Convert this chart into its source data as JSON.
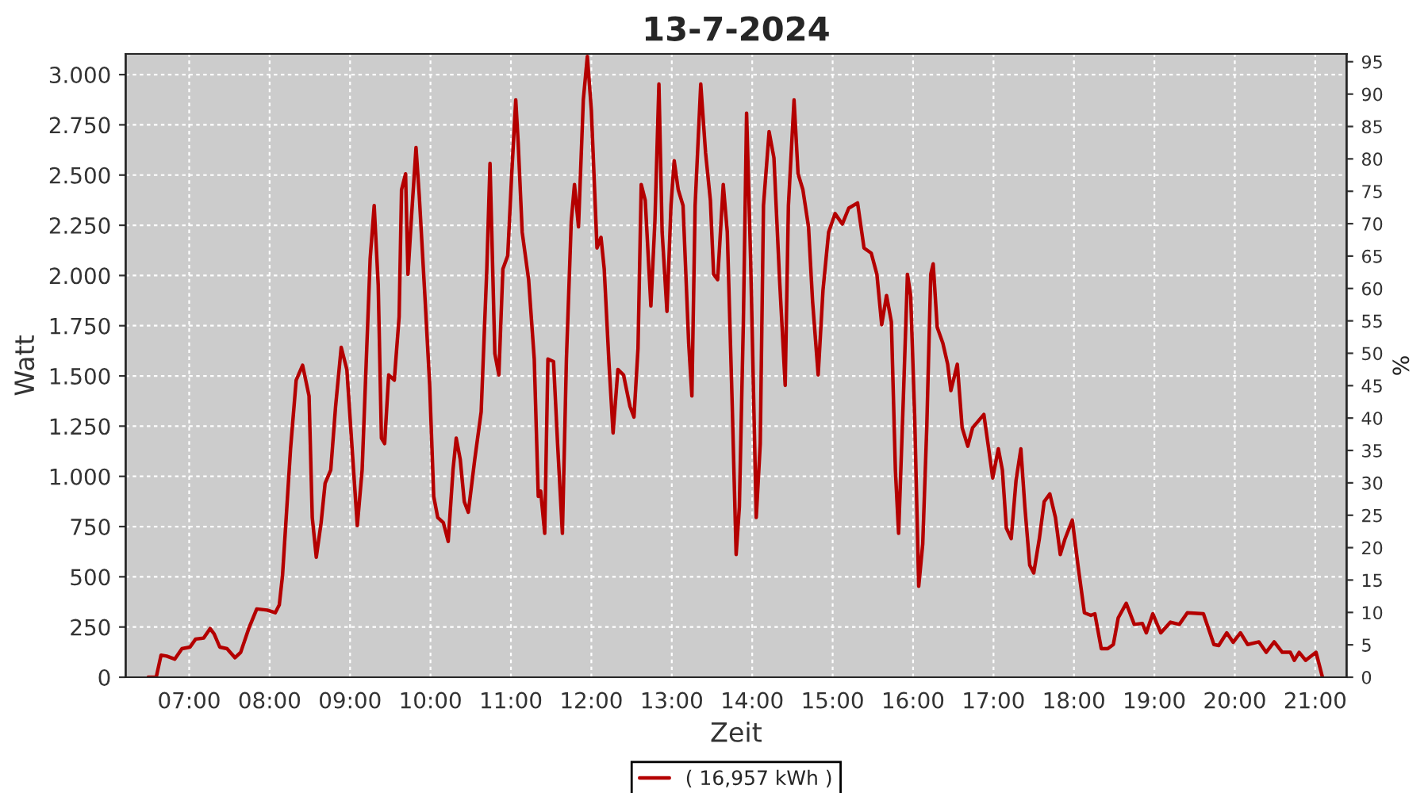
{
  "chart_data": {
    "type": "line",
    "title": "13-7-2024",
    "xlabel": "Zeit",
    "ylabel": "Watt",
    "y2label": "%",
    "xlim": [
      6.21,
      21.39
    ],
    "xticks": [
      {
        "value": 7,
        "label": "07:00"
      },
      {
        "value": 8,
        "label": "08:00"
      },
      {
        "value": 9,
        "label": "09:00"
      },
      {
        "value": 10,
        "label": "10:00"
      },
      {
        "value": 11,
        "label": "11:00"
      },
      {
        "value": 12,
        "label": "12:00"
      },
      {
        "value": 13,
        "label": "13:00"
      },
      {
        "value": 14,
        "label": "14:00"
      },
      {
        "value": 15,
        "label": "15:00"
      },
      {
        "value": 16,
        "label": "16:00"
      },
      {
        "value": 17,
        "label": "17:00"
      },
      {
        "value": 18,
        "label": "18:00"
      },
      {
        "value": 19,
        "label": "19:00"
      },
      {
        "value": 20,
        "label": "20:00"
      },
      {
        "value": 21,
        "label": "21:00"
      }
    ],
    "ylim": [
      0,
      3103
    ],
    "yticks": [
      0,
      250,
      500,
      750,
      {
        "value": 1000,
        "label": "1.000"
      },
      {
        "value": 1250,
        "label": "1.250"
      },
      {
        "value": 1500,
        "label": "1.500"
      },
      {
        "value": 1750,
        "label": "1.750"
      },
      {
        "value": 2000,
        "label": "2.000"
      },
      {
        "value": 2250,
        "label": "2.250"
      },
      {
        "value": 2500,
        "label": "2.500"
      },
      {
        "value": 2750,
        "label": "2.750"
      },
      {
        "value": 3000,
        "label": "3.000"
      }
    ],
    "y2lim": [
      0,
      96.2
    ],
    "y2ticks": [
      0,
      5,
      10,
      15,
      20,
      25,
      30,
      35,
      40,
      45,
      50,
      55,
      60,
      65,
      70,
      75,
      80,
      85,
      90,
      95
    ],
    "grid": true,
    "legend": "bottom",
    "marker": "none",
    "line_style": "solid",
    "series": [
      {
        "name": "( 16,957 kWh )",
        "color": "#b40000",
        "x": [
          6.49,
          6.59,
          6.65,
          6.72,
          6.82,
          6.91,
          7.01,
          7.08,
          7.18,
          7.26,
          7.31,
          7.38,
          7.47,
          7.57,
          7.64,
          7.74,
          7.84,
          7.97,
          8.07,
          8.12,
          8.16,
          8.21,
          8.26,
          8.33,
          8.41,
          8.49,
          8.53,
          8.58,
          8.64,
          8.69,
          8.76,
          8.82,
          8.89,
          8.96,
          9.03,
          9.09,
          9.15,
          9.2,
          9.25,
          9.3,
          9.35,
          9.39,
          9.43,
          9.48,
          9.55,
          9.61,
          9.64,
          9.69,
          9.72,
          9.76,
          9.82,
          9.86,
          9.93,
          9.99,
          10.04,
          10.09,
          10.16,
          10.22,
          10.28,
          10.32,
          10.37,
          10.42,
          10.47,
          10.55,
          10.63,
          10.7,
          10.74,
          10.8,
          10.85,
          10.9,
          10.96,
          11.01,
          11.06,
          11.09,
          11.14,
          11.22,
          11.29,
          11.34,
          11.37,
          11.42,
          11.46,
          11.53,
          11.58,
          11.64,
          11.69,
          11.75,
          11.79,
          11.84,
          11.9,
          11.95,
          12.0,
          12.07,
          12.12,
          12.16,
          12.22,
          12.27,
          12.33,
          12.4,
          12.48,
          12.53,
          12.58,
          12.62,
          12.67,
          12.74,
          12.79,
          12.84,
          12.88,
          12.94,
          12.99,
          13.03,
          13.08,
          13.14,
          13.21,
          13.25,
          13.29,
          13.36,
          13.42,
          13.48,
          13.52,
          13.57,
          13.64,
          13.69,
          13.75,
          13.8,
          13.84,
          13.89,
          13.93,
          13.98,
          14.05,
          14.1,
          14.14,
          14.21,
          14.27,
          14.34,
          14.41,
          14.45,
          14.52,
          14.57,
          14.63,
          14.7,
          14.75,
          14.82,
          14.88,
          14.95,
          15.03,
          15.12,
          15.2,
          15.31,
          15.39,
          15.48,
          15.55,
          15.61,
          15.67,
          15.73,
          15.78,
          15.82,
          15.88,
          15.93,
          15.97,
          16.02,
          16.07,
          16.12,
          16.17,
          16.22,
          16.25,
          16.3,
          16.37,
          16.43,
          16.47,
          16.55,
          16.61,
          16.68,
          16.74,
          16.88,
          16.94,
          16.99,
          17.06,
          17.11,
          17.16,
          17.22,
          17.28,
          17.34,
          17.39,
          17.45,
          17.5,
          17.57,
          17.63,
          17.7,
          17.77,
          17.83,
          17.89,
          17.98,
          18.05,
          18.13,
          18.21,
          18.26,
          18.34,
          18.42,
          18.49,
          18.55,
          18.65,
          18.75,
          18.85,
          18.9,
          18.98,
          19.08,
          19.2,
          19.31,
          19.41,
          19.61,
          19.74,
          19.8,
          19.9,
          19.98,
          20.07,
          20.16,
          20.3,
          20.39,
          20.49,
          20.59,
          20.69,
          20.74,
          20.8,
          20.88,
          21.01,
          21.09
        ],
        "values": [
          0,
          0,
          110,
          105,
          90,
          142,
          150,
          190,
          195,
          242,
          216,
          150,
          142,
          97,
          124,
          242,
          340,
          334,
          321,
          360,
          505,
          821,
          1137,
          1479,
          1553,
          1400,
          795,
          597,
          769,
          966,
          1032,
          1348,
          1642,
          1532,
          1111,
          755,
          1032,
          1558,
          2084,
          2348,
          1953,
          1190,
          1163,
          1505,
          1479,
          1795,
          2427,
          2506,
          2006,
          2269,
          2637,
          2400,
          1900,
          1453,
          900,
          795,
          769,
          676,
          1032,
          1190,
          1084,
          874,
          821,
          1084,
          1321,
          2032,
          2558,
          1611,
          1505,
          2032,
          2098,
          2506,
          2874,
          2663,
          2216,
          1979,
          1584,
          900,
          927,
          716,
          1584,
          1571,
          1163,
          716,
          1584,
          2269,
          2453,
          2242,
          2874,
          3090,
          2822,
          2137,
          2190,
          2032,
          1558,
          1216,
          1532,
          1505,
          1348,
          1295,
          1637,
          2453,
          2374,
          1848,
          2269,
          2953,
          2216,
          1821,
          2348,
          2571,
          2427,
          2348,
          1663,
          1400,
          2348,
          2953,
          2611,
          2374,
          2006,
          1979,
          2453,
          2216,
          1374,
          611,
          847,
          1769,
          2808,
          2084,
          795,
          1163,
          2348,
          2716,
          2585,
          1979,
          1453,
          2348,
          2874,
          2506,
          2427,
          2242,
          1874,
          1505,
          1927,
          2216,
          2308,
          2256,
          2335,
          2361,
          2137,
          2111,
          2006,
          1755,
          1900,
          1769,
          1032,
          716,
          1400,
          2006,
          1900,
          1295,
          453,
          663,
          1242,
          2006,
          2058,
          1742,
          1663,
          1558,
          1427,
          1558,
          1242,
          1150,
          1242,
          1308,
          1137,
          992,
          1137,
          1032,
          742,
          690,
          979,
          1137,
          847,
          558,
          519,
          690,
          874,
          913,
          795,
          611,
          690,
          782,
          558,
          321,
          308,
          316,
          142,
          142,
          163,
          295,
          368,
          263,
          268,
          221,
          316,
          221,
          274,
          263,
          321,
          316,
          163,
          158,
          221,
          174,
          221,
          163,
          176,
          124,
          176,
          124,
          124,
          84,
          124,
          84,
          124,
          0
        ]
      }
    ]
  }
}
